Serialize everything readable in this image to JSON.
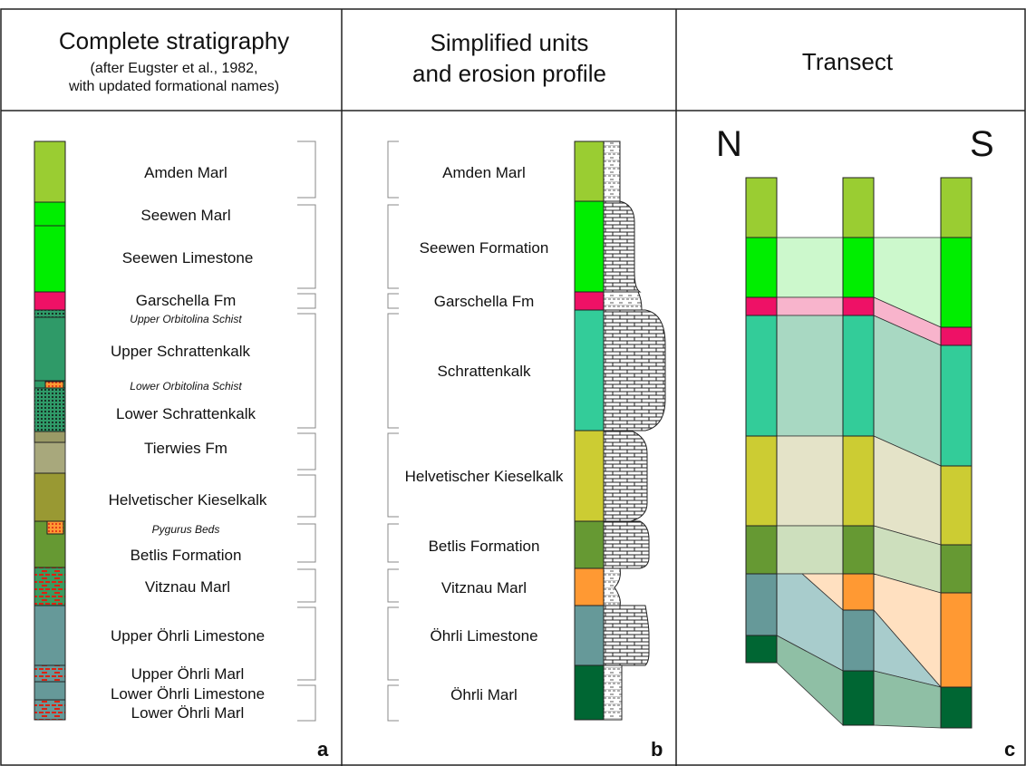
{
  "colors": {
    "amden": "#9acd32",
    "seewen": "#00ee00",
    "garschella": "#ee1166",
    "schratten_a": "#2f9a68",
    "schratten_b": "#33cc99",
    "tierwies": "#9a9a66",
    "kieselkalk_a": "#999933",
    "kieselkalk_b": "#cccc33",
    "betlis": "#669933",
    "vitznau": "#ff9933",
    "oehrli_lst": "#669999",
    "oehrli_marl": "#006633",
    "marl_red": "#dd2211"
  },
  "panel_a": {
    "title": "Complete stratigraphy",
    "subtitle1": "(after Eugster et al., 1982,",
    "subtitle2": "with updated formational names)",
    "letter": "a",
    "units": [
      "Amden Marl",
      "Seewen Marl",
      "Seewen Limestone",
      "Garschella Fm",
      "Upper Orbitolina Schist",
      "Upper Schrattenkalk",
      "Lower Orbitolina Schist",
      "Lower Schrattenkalk",
      "Tierwies Fm",
      "Helvetischer Kieselkalk",
      "Pygurus Beds",
      "Betlis Formation",
      "Vitznau Marl",
      "Upper Öhrli Limestone",
      "Upper Öhrli Marl",
      "Lower Öhrli Limestone",
      "Lower Öhrli Marl"
    ]
  },
  "panel_b": {
    "title1": "Simplified units",
    "title2": "and erosion profile",
    "letter": "b",
    "units": [
      "Amden Marl",
      "Seewen Formation",
      "Garschella Fm",
      "Schrattenkalk",
      "Helvetischer Kieselkalk",
      "Betlis Formation",
      "Vitznau Marl",
      "Öhrli Limestone",
      "Öhrli Marl"
    ]
  },
  "panel_c": {
    "title": "Transect",
    "north": "N",
    "south": "S",
    "letter": "c"
  }
}
